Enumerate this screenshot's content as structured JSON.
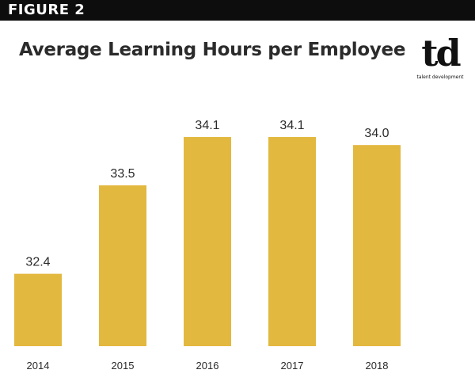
{
  "header": {
    "figure_label": "FIGURE 2"
  },
  "logo": {
    "mark": "td",
    "caption": "talent development"
  },
  "chart_data": {
    "type": "bar",
    "title": "Average Learning Hours per Employee",
    "categories": [
      "2014",
      "2015",
      "2016",
      "2017",
      "2018"
    ],
    "values": [
      32.4,
      33.5,
      34.1,
      34.1,
      34.0
    ],
    "value_labels": [
      "32.4",
      "33.5",
      "34.1",
      "34.1",
      "34.0"
    ],
    "xlabel": "",
    "ylabel": "",
    "ylim": [
      31.5,
      34.1
    ],
    "grid": false,
    "legend": "none",
    "bar_color": "#e3b83f"
  }
}
